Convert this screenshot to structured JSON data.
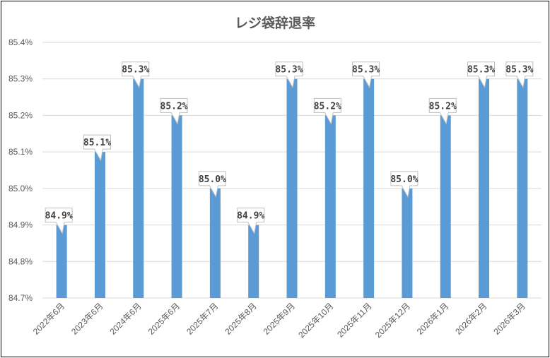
{
  "chart_data": {
    "type": "bar",
    "title": "レジ袋辞退率",
    "xlabel": "",
    "ylabel": "",
    "categories": [
      "2022年6月",
      "2023年6月",
      "2024年6月",
      "2025年6月",
      "2025年7月",
      "2025年8月",
      "2025年9月",
      "2025年10月",
      "2025年11月",
      "2025年12月",
      "2026年1月",
      "2026年2月",
      "2026年3月"
    ],
    "series": [
      {
        "values": [
          84.9,
          85.1,
          85.3,
          85.2,
          85.0,
          84.9,
          85.3,
          85.2,
          85.3,
          85.0,
          85.2,
          85.3,
          85.3
        ]
      }
    ],
    "data_labels": [
      "84.9%",
      "85.1%",
      "85.3%",
      "85.2%",
      "85.0%",
      "84.9%",
      "85.3%",
      "85.2%",
      "85.3%",
      "85.0%",
      "85.2%",
      "85.3%",
      "85.3%"
    ],
    "ylim": [
      84.7,
      85.4
    ],
    "y_ticks": [
      "84.7%",
      "84.8%",
      "84.9%",
      "85.0%",
      "85.1%",
      "85.2%",
      "85.3%",
      "85.4%"
    ],
    "grid": true,
    "legend": "none",
    "colors": {
      "bar": "#5B9BD5",
      "grid": "#D9D9D9",
      "text": "#595959",
      "label_border": "#BFBFBF"
    }
  }
}
